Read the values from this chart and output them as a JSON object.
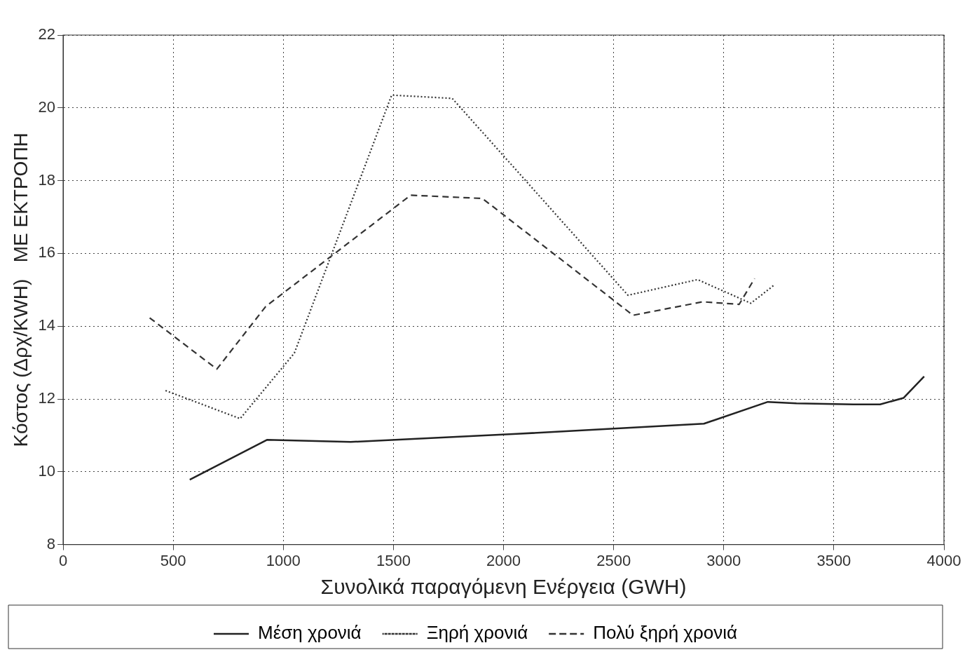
{
  "chart_data": {
    "type": "line",
    "xlabel": "Συνολικά παραγόμενη Ενέργεια (GWH)",
    "ylabel": "Κόστος (Δρχ/KWH)   ΜΕ ΕΚΤΡΟΠΗ",
    "xlim": [
      0,
      4000
    ],
    "xticks": [
      0,
      500,
      1000,
      1500,
      2000,
      2500,
      3000,
      3500,
      4000
    ],
    "ylim": [
      8,
      22
    ],
    "yticks": [
      8,
      10,
      12,
      14,
      16,
      18,
      20,
      22
    ],
    "grid": true,
    "legend": "bottom",
    "marker": "none",
    "series": [
      {
        "name": "Μέση χρονιά",
        "color": "#222222",
        "line_style": "solid",
        "x": [
          575,
          927,
          1306,
          2060,
          2910,
          3200,
          3330,
          3588,
          3710,
          3817,
          3910
        ],
        "values": [
          9.78,
          10.88,
          10.82,
          11.04,
          11.32,
          11.92,
          11.88,
          11.85,
          11.85,
          12.03,
          12.62
        ]
      },
      {
        "name": "Ξηρή χρονιά",
        "color": "#333333",
        "line_style": "dotted",
        "x": [
          465,
          804,
          1050,
          1492,
          1767,
          2565,
          2881,
          3123,
          3229
        ],
        "values": [
          12.23,
          11.46,
          13.26,
          20.35,
          20.26,
          14.85,
          15.28,
          14.63,
          15.13
        ]
      },
      {
        "name": "Πολύ ξηρή χρονιά",
        "color": "#333333",
        "line_style": "dashed",
        "x": [
          393,
          698,
          920,
          1578,
          1904,
          2588,
          2904,
          3070,
          3140
        ],
        "values": [
          14.23,
          12.82,
          14.54,
          17.6,
          17.51,
          14.3,
          14.67,
          14.6,
          15.31
        ]
      }
    ]
  }
}
